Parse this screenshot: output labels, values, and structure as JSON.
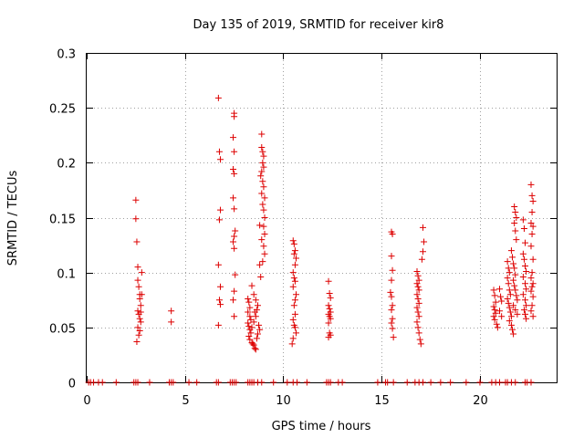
{
  "chart_data": {
    "type": "scatter",
    "title": "Day 135 of 2019, SRMTID for receiver kir8",
    "xlabel": "GPS time / hours",
    "ylabel": "SRMTID / TECUs",
    "xlim": [
      0,
      23.9
    ],
    "ylim": [
      0,
      0.3
    ],
    "xticks": [
      0,
      5,
      10,
      15,
      20
    ],
    "xtick_labels": [
      "0",
      "5",
      "10",
      "15",
      "20"
    ],
    "yticks": [
      0,
      0.05,
      0.1,
      0.15,
      0.2,
      0.25,
      0.3
    ],
    "ytick_labels": [
      "0",
      "0.05",
      "0.1",
      "0.15",
      "0.2",
      "0.25",
      "0.3"
    ],
    "grid": true,
    "marker": "+",
    "series": [
      {
        "name": "SRMTID",
        "color": "#dd0000",
        "points": [
          [
            2.5,
            0.166
          ],
          [
            2.5,
            0.149
          ],
          [
            2.55,
            0.128
          ],
          [
            2.6,
            0.105
          ],
          [
            2.6,
            0.093
          ],
          [
            2.65,
            0.087
          ],
          [
            2.7,
            0.08
          ],
          [
            2.7,
            0.076
          ],
          [
            2.75,
            0.07
          ],
          [
            2.6,
            0.065
          ],
          [
            2.65,
            0.062
          ],
          [
            2.7,
            0.058
          ],
          [
            2.75,
            0.055
          ],
          [
            2.6,
            0.05
          ],
          [
            2.7,
            0.047
          ],
          [
            2.65,
            0.043
          ],
          [
            2.55,
            0.037
          ],
          [
            2.8,
            0.1
          ],
          [
            2.8,
            0.08
          ],
          [
            2.75,
            0.064
          ],
          [
            4.3,
            0.065
          ],
          [
            4.3,
            0.055
          ],
          [
            6.7,
            0.259
          ],
          [
            6.75,
            0.21
          ],
          [
            6.8,
            0.203
          ],
          [
            6.8,
            0.157
          ],
          [
            6.75,
            0.148
          ],
          [
            6.7,
            0.107
          ],
          [
            6.8,
            0.087
          ],
          [
            6.75,
            0.075
          ],
          [
            6.8,
            0.071
          ],
          [
            6.7,
            0.052
          ],
          [
            7.5,
            0.245
          ],
          [
            7.5,
            0.242
          ],
          [
            7.45,
            0.223
          ],
          [
            7.5,
            0.21
          ],
          [
            7.45,
            0.194
          ],
          [
            7.5,
            0.19
          ],
          [
            7.45,
            0.168
          ],
          [
            7.5,
            0.158
          ],
          [
            7.55,
            0.138
          ],
          [
            7.5,
            0.133
          ],
          [
            7.45,
            0.128
          ],
          [
            7.5,
            0.122
          ],
          [
            7.55,
            0.098
          ],
          [
            7.5,
            0.083
          ],
          [
            7.45,
            0.075
          ],
          [
            7.5,
            0.06
          ],
          [
            8.2,
            0.076
          ],
          [
            8.25,
            0.073
          ],
          [
            8.3,
            0.068
          ],
          [
            8.2,
            0.064
          ],
          [
            8.3,
            0.06
          ],
          [
            8.35,
            0.057
          ],
          [
            8.2,
            0.054
          ],
          [
            8.25,
            0.051
          ],
          [
            8.3,
            0.048
          ],
          [
            8.35,
            0.045
          ],
          [
            8.25,
            0.042
          ],
          [
            8.3,
            0.039
          ],
          [
            8.4,
            0.036
          ],
          [
            8.45,
            0.035
          ],
          [
            8.5,
            0.034
          ],
          [
            8.55,
            0.031
          ],
          [
            8.6,
            0.03
          ],
          [
            8.4,
            0.05
          ],
          [
            8.5,
            0.055
          ],
          [
            8.6,
            0.06
          ],
          [
            8.65,
            0.066
          ],
          [
            8.7,
            0.07
          ],
          [
            8.75,
            0.052
          ],
          [
            8.8,
            0.048
          ],
          [
            8.7,
            0.044
          ],
          [
            8.6,
            0.075
          ],
          [
            8.5,
            0.08
          ],
          [
            8.4,
            0.088
          ],
          [
            8.55,
            0.064
          ],
          [
            8.65,
            0.04
          ],
          [
            8.8,
            0.107
          ],
          [
            8.85,
            0.096
          ],
          [
            8.9,
            0.13
          ],
          [
            8.8,
            0.143
          ],
          [
            8.9,
            0.226
          ],
          [
            8.9,
            0.214
          ],
          [
            8.95,
            0.21
          ],
          [
            9.0,
            0.206
          ],
          [
            8.95,
            0.2
          ],
          [
            9.0,
            0.196
          ],
          [
            8.9,
            0.192
          ],
          [
            8.85,
            0.188
          ],
          [
            8.95,
            0.183
          ],
          [
            9.0,
            0.178
          ],
          [
            8.9,
            0.172
          ],
          [
            9.05,
            0.168
          ],
          [
            8.95,
            0.162
          ],
          [
            9.0,
            0.157
          ],
          [
            9.05,
            0.15
          ],
          [
            9.0,
            0.142
          ],
          [
            9.05,
            0.135
          ],
          [
            9.0,
            0.124
          ],
          [
            9.05,
            0.117
          ],
          [
            8.95,
            0.11
          ],
          [
            10.5,
            0.129
          ],
          [
            10.55,
            0.126
          ],
          [
            10.6,
            0.12
          ],
          [
            10.55,
            0.117
          ],
          [
            10.65,
            0.113
          ],
          [
            10.6,
            0.107
          ],
          [
            10.5,
            0.1
          ],
          [
            10.55,
            0.095
          ],
          [
            10.6,
            0.092
          ],
          [
            10.5,
            0.087
          ],
          [
            10.65,
            0.08
          ],
          [
            10.6,
            0.075
          ],
          [
            10.55,
            0.07
          ],
          [
            10.6,
            0.062
          ],
          [
            10.5,
            0.057
          ],
          [
            10.55,
            0.052
          ],
          [
            10.6,
            0.05
          ],
          [
            10.65,
            0.045
          ],
          [
            10.5,
            0.04
          ],
          [
            10.45,
            0.035
          ],
          [
            12.3,
            0.092
          ],
          [
            12.35,
            0.081
          ],
          [
            12.4,
            0.077
          ],
          [
            12.3,
            0.07
          ],
          [
            12.35,
            0.067
          ],
          [
            12.4,
            0.064
          ],
          [
            12.3,
            0.062
          ],
          [
            12.35,
            0.06
          ],
          [
            12.4,
            0.058
          ],
          [
            12.3,
            0.054
          ],
          [
            12.35,
            0.045
          ],
          [
            12.4,
            0.043
          ],
          [
            12.3,
            0.041
          ],
          [
            15.5,
            0.137
          ],
          [
            15.55,
            0.135
          ],
          [
            15.5,
            0.115
          ],
          [
            15.55,
            0.102
          ],
          [
            15.5,
            0.093
          ],
          [
            15.45,
            0.082
          ],
          [
            15.5,
            0.078
          ],
          [
            15.55,
            0.07
          ],
          [
            15.5,
            0.066
          ],
          [
            15.55,
            0.058
          ],
          [
            15.5,
            0.054
          ],
          [
            15.55,
            0.049
          ],
          [
            15.6,
            0.041
          ],
          [
            16.8,
            0.101
          ],
          [
            16.85,
            0.097
          ],
          [
            16.9,
            0.093
          ],
          [
            16.8,
            0.09
          ],
          [
            16.85,
            0.087
          ],
          [
            16.9,
            0.084
          ],
          [
            16.8,
            0.08
          ],
          [
            16.85,
            0.076
          ],
          [
            16.9,
            0.072
          ],
          [
            16.8,
            0.068
          ],
          [
            16.85,
            0.064
          ],
          [
            16.9,
            0.06
          ],
          [
            16.8,
            0.055
          ],
          [
            16.85,
            0.05
          ],
          [
            16.9,
            0.045
          ],
          [
            16.95,
            0.039
          ],
          [
            17.0,
            0.035
          ],
          [
            17.1,
            0.141
          ],
          [
            17.15,
            0.128
          ],
          [
            17.1,
            0.119
          ],
          [
            17.05,
            0.112
          ],
          [
            20.7,
            0.084
          ],
          [
            20.75,
            0.079
          ],
          [
            20.8,
            0.073
          ],
          [
            20.7,
            0.069
          ],
          [
            20.75,
            0.066
          ],
          [
            20.8,
            0.063
          ],
          [
            20.7,
            0.06
          ],
          [
            20.75,
            0.057
          ],
          [
            20.85,
            0.053
          ],
          [
            20.9,
            0.05
          ],
          [
            21.0,
            0.085
          ],
          [
            21.05,
            0.078
          ],
          [
            21.1,
            0.074
          ],
          [
            21.0,
            0.065
          ],
          [
            21.1,
            0.06
          ],
          [
            21.4,
            0.11
          ],
          [
            21.45,
            0.104
          ],
          [
            21.5,
            0.1
          ],
          [
            21.4,
            0.095
          ],
          [
            21.45,
            0.09
          ],
          [
            21.5,
            0.084
          ],
          [
            21.55,
            0.08
          ],
          [
            21.4,
            0.076
          ],
          [
            21.45,
            0.072
          ],
          [
            21.5,
            0.068
          ],
          [
            21.55,
            0.064
          ],
          [
            21.6,
            0.06
          ],
          [
            21.5,
            0.056
          ],
          [
            21.6,
            0.052
          ],
          [
            21.65,
            0.048
          ],
          [
            21.7,
            0.044
          ],
          [
            21.6,
            0.12
          ],
          [
            21.65,
            0.114
          ],
          [
            21.7,
            0.108
          ],
          [
            21.75,
            0.104
          ],
          [
            21.8,
            0.098
          ],
          [
            21.7,
            0.093
          ],
          [
            21.75,
            0.088
          ],
          [
            21.8,
            0.084
          ],
          [
            21.85,
            0.079
          ],
          [
            21.9,
            0.075
          ],
          [
            21.7,
            0.07
          ],
          [
            21.8,
            0.066
          ],
          [
            21.9,
            0.062
          ],
          [
            21.75,
            0.16
          ],
          [
            21.8,
            0.155
          ],
          [
            21.85,
            0.15
          ],
          [
            21.75,
            0.145
          ],
          [
            21.8,
            0.138
          ],
          [
            21.85,
            0.13
          ],
          [
            22.2,
            0.148
          ],
          [
            22.25,
            0.14
          ],
          [
            22.3,
            0.127
          ],
          [
            22.2,
            0.117
          ],
          [
            22.25,
            0.112
          ],
          [
            22.3,
            0.106
          ],
          [
            22.35,
            0.101
          ],
          [
            22.2,
            0.096
          ],
          [
            22.3,
            0.09
          ],
          [
            22.35,
            0.085
          ],
          [
            22.2,
            0.08
          ],
          [
            22.3,
            0.075
          ],
          [
            22.35,
            0.07
          ],
          [
            22.25,
            0.066
          ],
          [
            22.3,
            0.062
          ],
          [
            22.35,
            0.058
          ],
          [
            22.6,
            0.18
          ],
          [
            22.65,
            0.17
          ],
          [
            22.7,
            0.165
          ],
          [
            22.65,
            0.155
          ],
          [
            22.6,
            0.145
          ],
          [
            22.7,
            0.142
          ],
          [
            22.65,
            0.135
          ],
          [
            22.6,
            0.124
          ],
          [
            22.7,
            0.112
          ],
          [
            22.65,
            0.1
          ],
          [
            22.6,
            0.095
          ],
          [
            22.7,
            0.09
          ],
          [
            22.65,
            0.087
          ],
          [
            22.6,
            0.083
          ],
          [
            22.7,
            0.078
          ],
          [
            22.65,
            0.07
          ],
          [
            22.6,
            0.065
          ],
          [
            22.7,
            0.06
          ]
        ],
        "zero_points_x": [
          0.1,
          0.2,
          0.35,
          0.6,
          0.8,
          1.5,
          2.4,
          2.5,
          2.6,
          3.2,
          4.2,
          4.3,
          4.4,
          5.2,
          5.6,
          6.6,
          6.7,
          7.3,
          7.4,
          7.5,
          7.6,
          8.2,
          8.3,
          8.4,
          8.5,
          8.7,
          8.9,
          9.5,
          10.2,
          10.5,
          10.7,
          11.2,
          12.2,
          12.3,
          12.4,
          12.8,
          13.0,
          14.8,
          15.2,
          15.3,
          15.6,
          16.3,
          16.7,
          16.9,
          17.1,
          17.5,
          18.0,
          18.5,
          19.3,
          20.0,
          20.6,
          20.8,
          21.0,
          21.3,
          21.4,
          21.6,
          21.8,
          22.3,
          22.4,
          22.6
        ]
      }
    ]
  }
}
